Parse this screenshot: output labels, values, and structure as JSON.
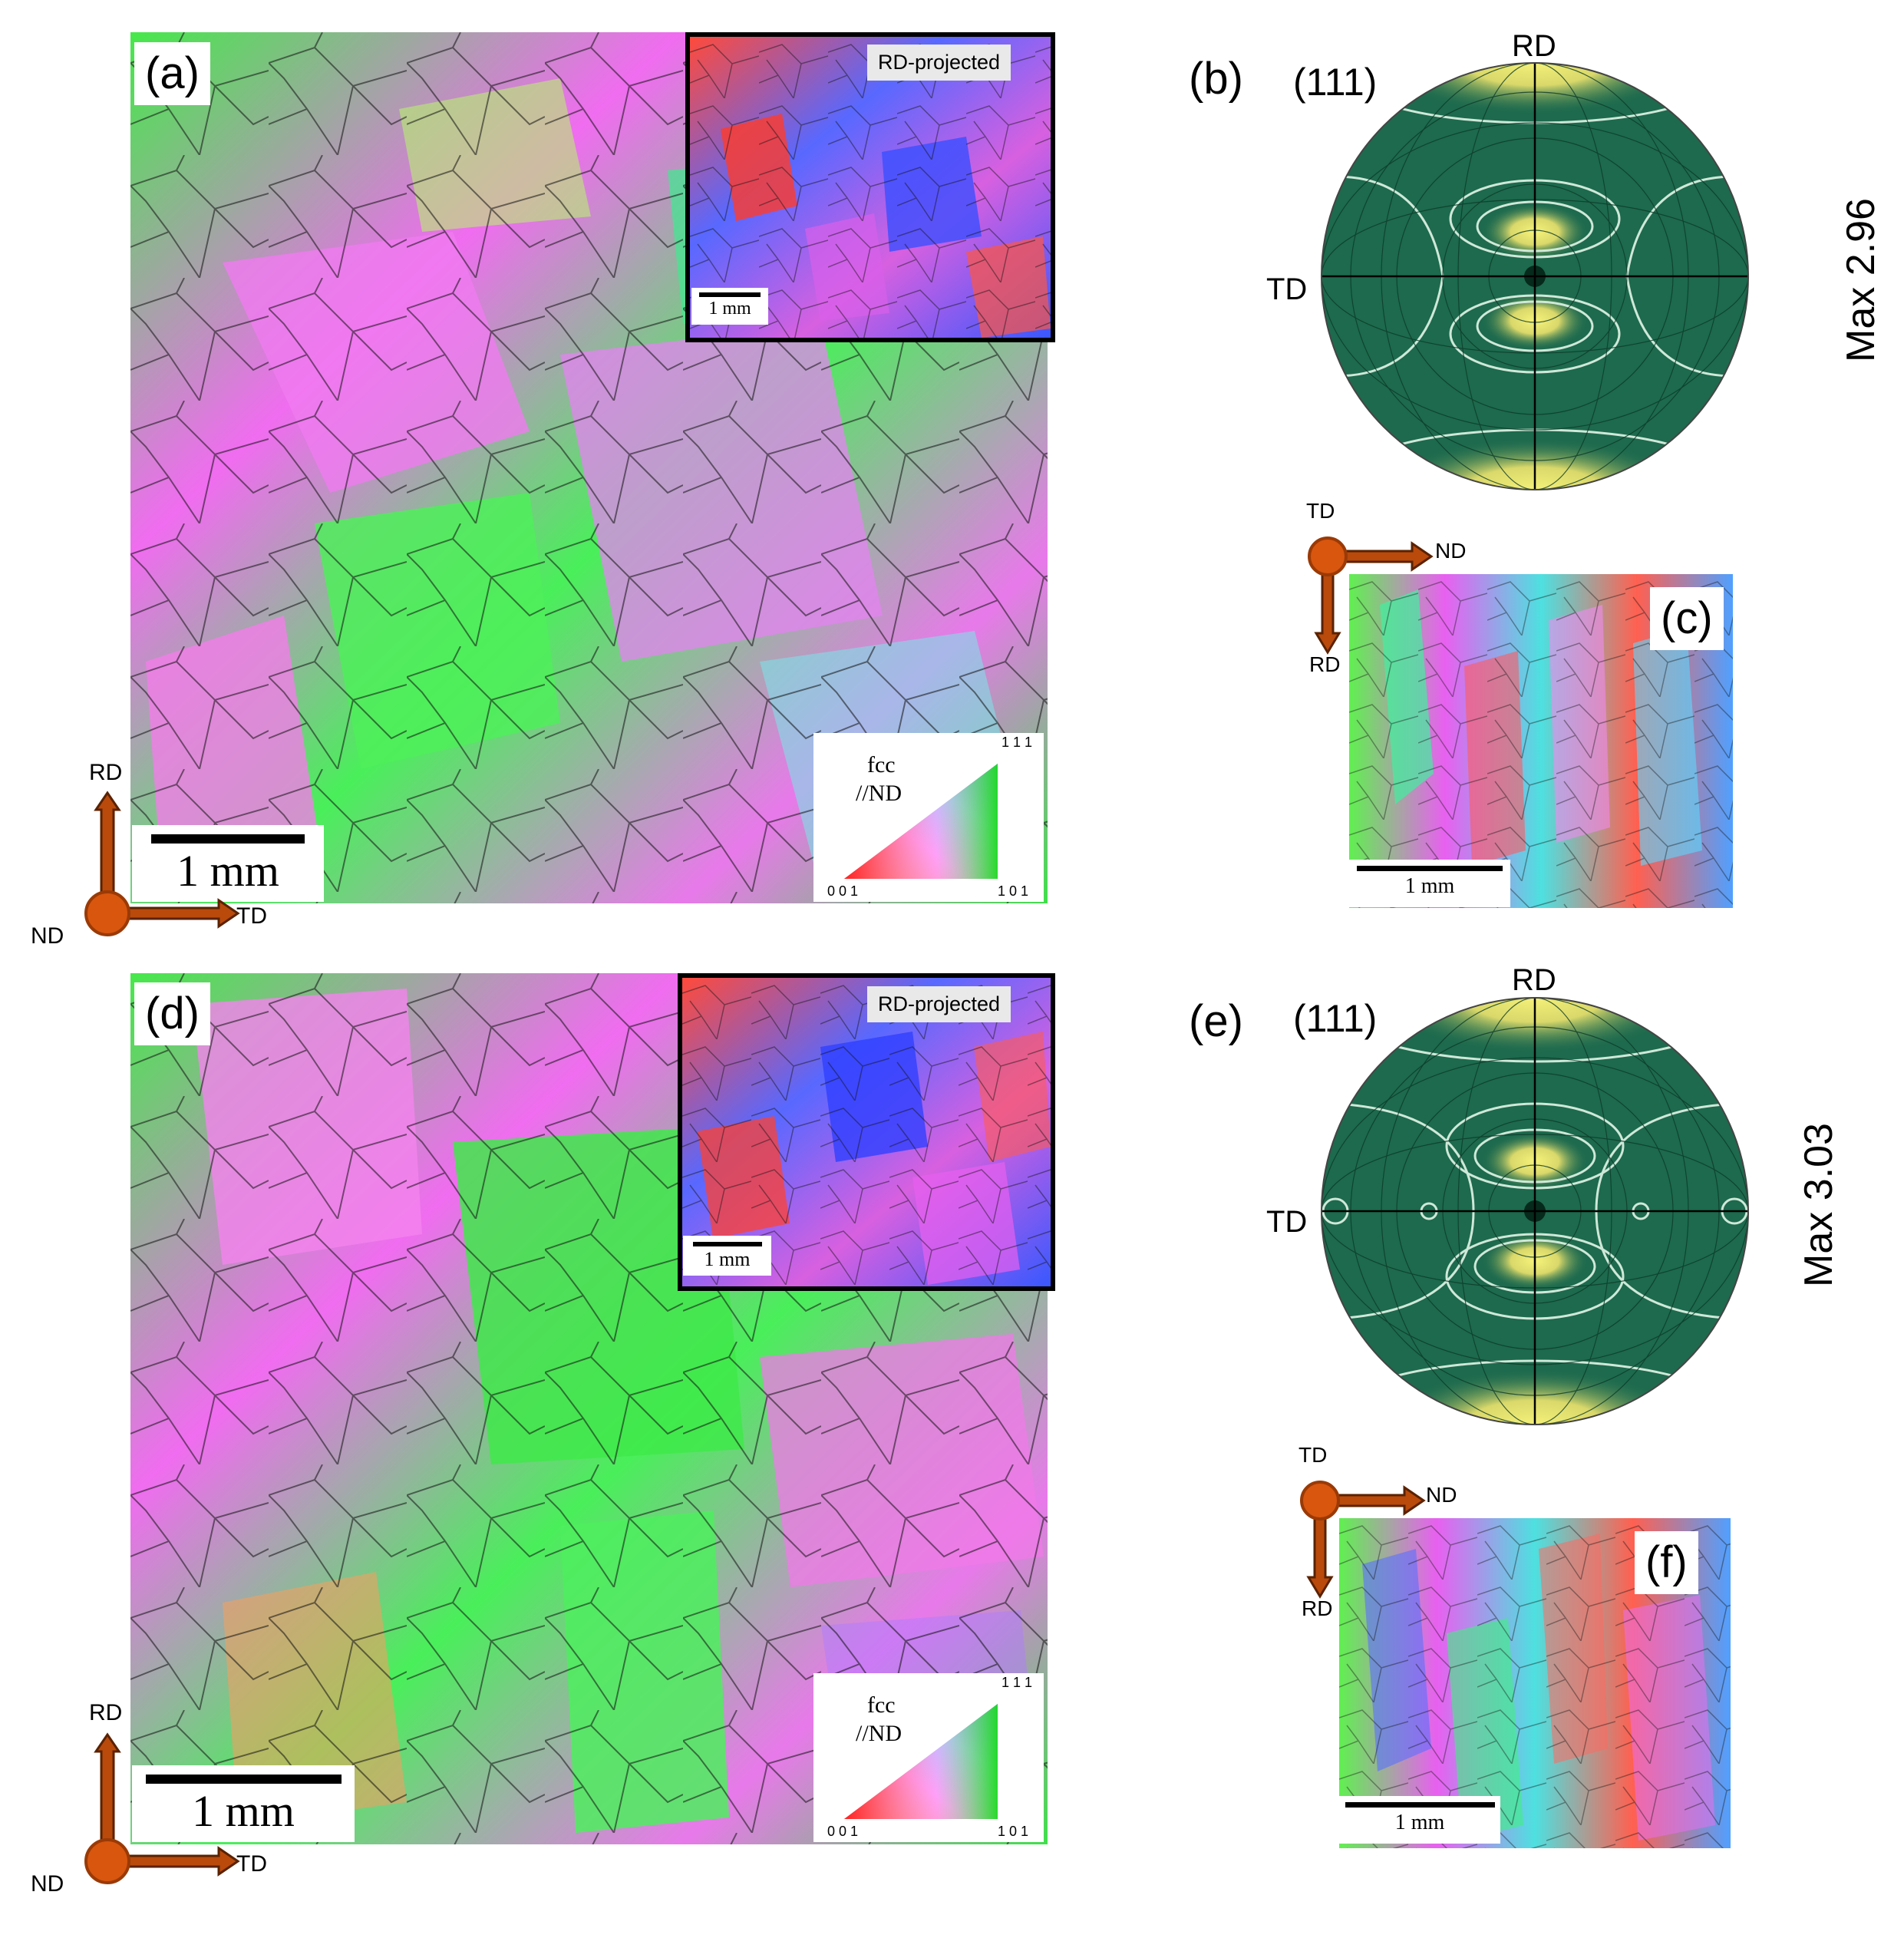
{
  "panels": {
    "a": "(a)",
    "b": "(b)",
    "c": "(c)",
    "d": "(d)",
    "e": "(e)",
    "f": "(f)"
  },
  "scale_bars": {
    "main": "1 mm",
    "inset": "1 mm",
    "side": "1 mm"
  },
  "inset_caption": "RD-projected",
  "ipf_legend": {
    "crystal": "fcc",
    "direction": "//ND",
    "corner_001": "0 0 1",
    "corner_101": "1 0 1",
    "corner_111": "1 1 1"
  },
  "axes": {
    "rd": "RD",
    "nd": "ND",
    "td": "TD"
  },
  "pole_figures": {
    "b": {
      "plane": "(111)",
      "top_label": "RD",
      "left_label": "TD",
      "max": "Max 2.96"
    },
    "e": {
      "plane": "(111)",
      "top_label": "RD",
      "left_label": "TD",
      "max": "Max 3.03"
    }
  },
  "colors": {
    "pf_background": "#1d6a4e",
    "pf_peak": "#f2ef6e",
    "arrow_fill": "#b94a0c",
    "arrow_stroke": "#5a2200",
    "ipf_red": "#ff2020",
    "ipf_green": "#20e020",
    "ipf_blue": "#3040ff",
    "ipf_magenta": "#ff40f0"
  }
}
